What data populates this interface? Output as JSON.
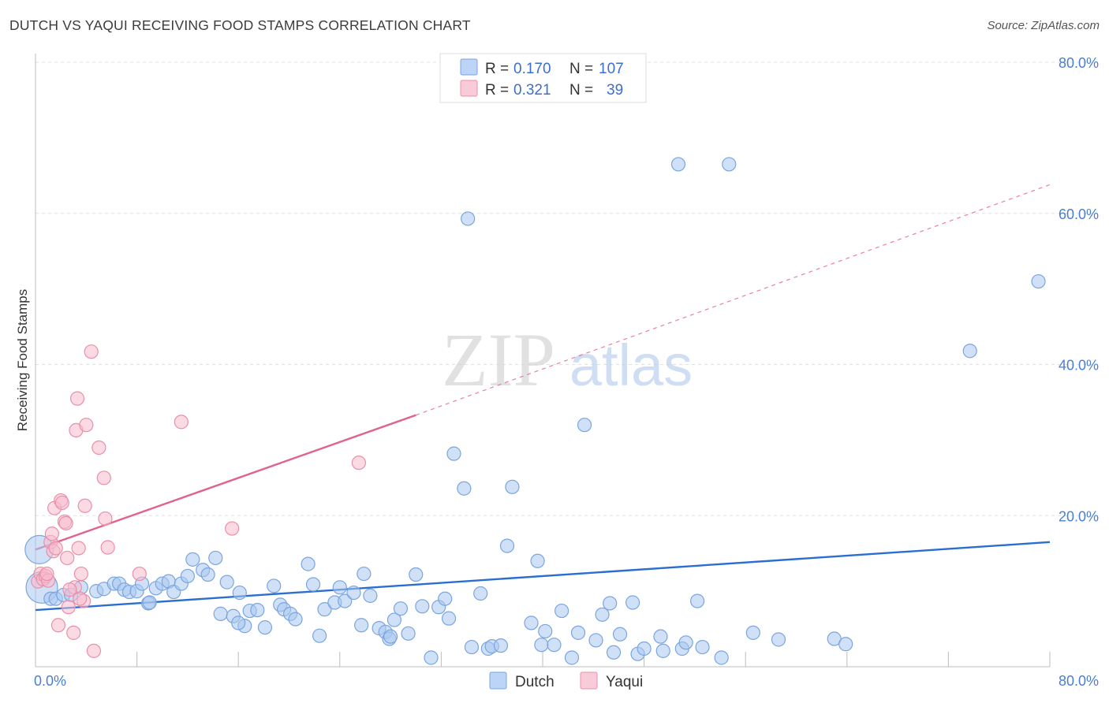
{
  "title": "DUTCH VS YAQUI RECEIVING FOOD STAMPS CORRELATION CHART",
  "source": "Source: ZipAtlas.com",
  "watermark": {
    "zip": "ZIP",
    "atlas": "atlas"
  },
  "colors": {
    "dutch_fill": "#a9c8f0",
    "dutch_stroke": "#7aa5e0",
    "dutch_line": "#2a6fd0",
    "yaqui_fill": "#f7bccd",
    "yaqui_stroke": "#ea8fa9",
    "yaqui_line": "#e0628e",
    "tick_label": "#4a7fd0",
    "grid": "#e0e0e0"
  },
  "legend": {
    "rows": [
      {
        "series": "Dutch",
        "r_label": "R =",
        "r_value": "0.170",
        "n_label": "N =",
        "n_value": "107"
      },
      {
        "series": "Yaqui",
        "r_label": "R =",
        "r_value": "0.321",
        "n_label": "N =",
        "n_value": "39"
      }
    ]
  },
  "chart_data": {
    "type": "scatter",
    "title": "DUTCH VS YAQUI RECEIVING FOOD STAMPS CORRELATION CHART",
    "xlabel": "",
    "ylabel": "Receiving Food Stamps",
    "xlim": [
      0,
      80
    ],
    "ylim": [
      0,
      80
    ],
    "x_tick_labels": [
      "0.0%",
      "80.0%"
    ],
    "y_ticks": [
      20,
      40,
      60,
      80
    ],
    "y_tick_labels": [
      "20.0%",
      "40.0%",
      "60.0%",
      "80.0%"
    ],
    "grid": true,
    "legend_position": "top-center",
    "series": [
      {
        "name": "Dutch",
        "r": 0.17,
        "n": 107,
        "trend": {
          "x": [
            0,
            80
          ],
          "y": [
            7.5,
            16.5
          ],
          "dashed_extension": false
        },
        "points": [
          [
            0.3,
            15.5
          ],
          [
            0.5,
            10.5
          ],
          [
            1.2,
            9.0
          ],
          [
            1.6,
            9.0
          ],
          [
            2.2,
            9.5
          ],
          [
            2.8,
            9.5
          ],
          [
            3.6,
            10.5
          ],
          [
            4.8,
            10.0
          ],
          [
            5.4,
            10.3
          ],
          [
            6.2,
            11.0
          ],
          [
            6.6,
            11.0
          ],
          [
            7.0,
            10.2
          ],
          [
            7.4,
            9.9
          ],
          [
            8.0,
            10.0
          ],
          [
            8.4,
            11.0
          ],
          [
            8.9,
            8.4
          ],
          [
            9.5,
            10.4
          ],
          [
            10.0,
            11.0
          ],
          [
            10.5,
            11.3
          ],
          [
            10.9,
            9.9
          ],
          [
            11.5,
            11.0
          ],
          [
            12.0,
            12.0
          ],
          [
            12.4,
            14.2
          ],
          [
            13.2,
            12.8
          ],
          [
            13.6,
            12.2
          ],
          [
            14.2,
            14.4
          ],
          [
            14.6,
            7.0
          ],
          [
            15.1,
            11.2
          ],
          [
            15.6,
            6.7
          ],
          [
            16.1,
            9.8
          ],
          [
            16.5,
            5.4
          ],
          [
            16.9,
            7.4
          ],
          [
            17.5,
            7.5
          ],
          [
            18.1,
            5.2
          ],
          [
            18.8,
            10.7
          ],
          [
            19.3,
            8.2
          ],
          [
            19.6,
            7.6
          ],
          [
            20.1,
            7.0
          ],
          [
            20.5,
            6.3
          ],
          [
            21.5,
            13.6
          ],
          [
            21.9,
            10.9
          ],
          [
            22.4,
            4.1
          ],
          [
            22.8,
            7.6
          ],
          [
            23.6,
            8.5
          ],
          [
            24.0,
            10.5
          ],
          [
            24.4,
            8.7
          ],
          [
            25.1,
            9.8
          ],
          [
            25.7,
            5.5
          ],
          [
            25.9,
            12.3
          ],
          [
            26.4,
            9.4
          ],
          [
            27.1,
            5.1
          ],
          [
            27.6,
            4.6
          ],
          [
            27.9,
            3.7
          ],
          [
            28.3,
            6.2
          ],
          [
            28.8,
            7.7
          ],
          [
            29.4,
            4.4
          ],
          [
            30.0,
            12.2
          ],
          [
            30.5,
            8.0
          ],
          [
            31.2,
            1.2
          ],
          [
            31.8,
            7.9
          ],
          [
            32.3,
            9.0
          ],
          [
            32.6,
            6.4
          ],
          [
            33.0,
            28.2
          ],
          [
            33.8,
            23.6
          ],
          [
            34.4,
            2.6
          ],
          [
            35.1,
            9.7
          ],
          [
            35.7,
            2.4
          ],
          [
            36.0,
            2.7
          ],
          [
            36.7,
            2.8
          ],
          [
            37.2,
            16.0
          ],
          [
            37.6,
            23.8
          ],
          [
            39.1,
            5.8
          ],
          [
            39.6,
            14.0
          ],
          [
            39.9,
            2.9
          ],
          [
            40.2,
            4.7
          ],
          [
            40.9,
            2.9
          ],
          [
            41.5,
            7.4
          ],
          [
            42.3,
            1.2
          ],
          [
            42.8,
            4.5
          ],
          [
            43.3,
            32.0
          ],
          [
            44.2,
            3.5
          ],
          [
            44.7,
            6.9
          ],
          [
            45.3,
            8.4
          ],
          [
            45.6,
            1.9
          ],
          [
            46.1,
            4.3
          ],
          [
            47.1,
            8.5
          ],
          [
            47.5,
            1.7
          ],
          [
            48.0,
            2.4
          ],
          [
            49.3,
            4.0
          ],
          [
            49.5,
            2.1
          ],
          [
            50.7,
            66.5
          ],
          [
            51.0,
            2.4
          ],
          [
            51.3,
            3.2
          ],
          [
            52.2,
            8.7
          ],
          [
            52.6,
            2.6
          ],
          [
            54.1,
            1.2
          ],
          [
            54.7,
            66.5
          ],
          [
            56.6,
            4.5
          ],
          [
            58.6,
            3.6
          ],
          [
            63.0,
            3.7
          ],
          [
            63.9,
            3.0
          ],
          [
            73.7,
            41.8
          ],
          [
            79.1,
            51.0
          ],
          [
            34.1,
            59.3
          ],
          [
            9.0,
            8.5
          ],
          [
            16.0,
            5.8
          ],
          [
            28.0,
            4.0
          ]
        ]
      },
      {
        "name": "Yaqui",
        "r": 0.321,
        "n": 39,
        "trend": {
          "x": [
            0,
            30
          ],
          "y": [
            15.5,
            33.3
          ],
          "dashed_extension": true,
          "dashed_to": [
            80,
            63.8
          ]
        },
        "points": [
          [
            0.2,
            11.3
          ],
          [
            0.4,
            12.3
          ],
          [
            0.6,
            11.6
          ],
          [
            0.8,
            12.0
          ],
          [
            1.0,
            11.4
          ],
          [
            1.2,
            16.5
          ],
          [
            1.4,
            15.3
          ],
          [
            1.5,
            21.0
          ],
          [
            1.6,
            15.7
          ],
          [
            1.8,
            5.5
          ],
          [
            2.0,
            22.0
          ],
          [
            2.1,
            21.7
          ],
          [
            2.3,
            19.2
          ],
          [
            2.4,
            19.0
          ],
          [
            2.5,
            14.4
          ],
          [
            2.6,
            7.9
          ],
          [
            3.0,
            4.5
          ],
          [
            3.1,
            10.5
          ],
          [
            3.2,
            31.3
          ],
          [
            3.3,
            35.5
          ],
          [
            3.4,
            15.7
          ],
          [
            3.6,
            12.3
          ],
          [
            3.8,
            8.7
          ],
          [
            3.9,
            21.3
          ],
          [
            4.0,
            32.0
          ],
          [
            4.4,
            41.7
          ],
          [
            4.6,
            2.1
          ],
          [
            5.0,
            29.0
          ],
          [
            5.4,
            25.0
          ],
          [
            5.5,
            19.6
          ],
          [
            5.7,
            15.8
          ],
          [
            8.2,
            12.3
          ],
          [
            11.5,
            32.4
          ],
          [
            15.5,
            18.3
          ],
          [
            25.5,
            27.0
          ],
          [
            0.9,
            12.3
          ],
          [
            1.3,
            17.6
          ],
          [
            2.7,
            10.2
          ],
          [
            3.5,
            9.0
          ]
        ]
      }
    ]
  }
}
